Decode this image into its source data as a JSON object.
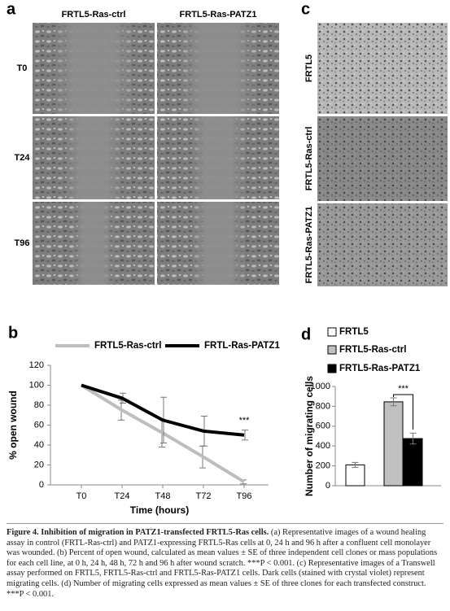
{
  "panels": {
    "a": {
      "label": "a",
      "columns": [
        "FRTL5-Ras-ctrl",
        "FRTL5-Ras-PATZ1"
      ],
      "rows": [
        "T0",
        "T24",
        "T96"
      ]
    },
    "c": {
      "label": "c",
      "rows": [
        "FRTL5",
        "FRTL5-Ras-ctrl",
        "FRTL5-Ras-PATZ1"
      ]
    }
  },
  "chart_data": [
    {
      "type": "line",
      "panel": "b",
      "categories": [
        "T0",
        "T24",
        "T48",
        "T72",
        "T96"
      ],
      "series": [
        {
          "name": "FRTL5-Ras-ctrl",
          "color": "#bdbdbd",
          "values": [
            100,
            75,
            52,
            28,
            3
          ],
          "errors": [
            0,
            10,
            14,
            11,
            2
          ]
        },
        {
          "name": "FRTL-Ras-PATZ1",
          "color": "#000000",
          "values": [
            100,
            87,
            65,
            54,
            50
          ],
          "errors": [
            0,
            5,
            23,
            15,
            5
          ]
        }
      ],
      "ylim": [
        0,
        120
      ],
      "yticks": [
        0,
        20,
        40,
        60,
        80,
        100,
        120
      ],
      "y_label": "% open wound",
      "x_label": "Time (hours)",
      "annotation": "***"
    },
    {
      "type": "bar",
      "panel": "d",
      "categories": [
        null
      ],
      "series": [
        {
          "name": "FRTL5",
          "color": "#ffffff",
          "values": [
            210
          ],
          "errors": [
            25
          ]
        },
        {
          "name": "FRTL5-Ras-ctrl",
          "color": "#c0c0c0",
          "values": [
            845
          ],
          "errors": [
            40
          ]
        },
        {
          "name": "FRTL5-Ras-PATZ1",
          "color": "#000000",
          "values": [
            475
          ],
          "errors": [
            55
          ]
        }
      ],
      "ylim": [
        0,
        1000
      ],
      "yticks": [
        0,
        200,
        400,
        600,
        800,
        1000
      ],
      "y_label": "Number of migrating cells",
      "annotation": "***"
    }
  ],
  "caption": {
    "title": "Figure 4.  Inhibition of migration in PATZ1-transfected FRTL5-Ras cells.",
    "text": "(a) Representative images of a wound healing assay in control (FRTL-Ras-ctrl) and PATZ1-expressing FRTL5-Ras cells at 0, 24 h and 96 h after a confluent cell monolayer was wounded. (b) Percent of open wound, calculated as mean values ± SE of three independent cell clones or mass populations for each cell line, at 0 h, 24 h, 48 h, 72 h and 96 h after wound scratch. ***P < 0.001. (c) Representative images of a Transwell assay performed on FRTL5, FRTL5-Ras-ctrl and FRTL5-Ras-PATZ1 cells. Dark cells (stained with crystal violet) represent migrating cells. (d) Number of migrating cells expressed as mean values ± SE of three clones for each transfected construct. ***P < 0.001."
  }
}
